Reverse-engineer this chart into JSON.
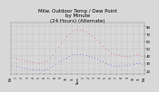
{
  "title": "Milw. Outdoor Temp / Dew Point\nby Minute\n(24 Hours) (Alternate)",
  "title_fontsize": 4.0,
  "background_color": "#d8d8d8",
  "plot_bg_color": "#d8d8d8",
  "grid_color": "#aaaaaa",
  "text_color": "#000000",
  "temp_color": "#ff0000",
  "dew_color": "#0000ff",
  "ylim": [
    15,
    85
  ],
  "xlim": [
    0,
    1440
  ],
  "ylabel_ticks": [
    20,
    30,
    40,
    50,
    60,
    70,
    80
  ],
  "xtick_labels": [
    "Mid",
    "1",
    "2",
    "3",
    "4",
    "5",
    "6",
    "7",
    "8",
    "9",
    "10",
    "11",
    "Noon",
    "1",
    "2",
    "3",
    "4",
    "5",
    "6",
    "7",
    "8",
    "9",
    "10",
    "11",
    "Mid"
  ],
  "temp_x": [
    0,
    30,
    60,
    90,
    120,
    150,
    180,
    210,
    240,
    270,
    300,
    330,
    360,
    390,
    420,
    450,
    480,
    510,
    540,
    570,
    600,
    630,
    660,
    690,
    720,
    750,
    780,
    810,
    840,
    870,
    900,
    930,
    960,
    990,
    1020,
    1050,
    1080,
    1110,
    1140,
    1170,
    1200,
    1230,
    1260,
    1290,
    1320,
    1350,
    1380,
    1410,
    1440
  ],
  "temp_y": [
    38,
    37,
    36,
    35,
    35,
    34,
    33,
    32,
    31,
    31,
    30,
    31,
    32,
    34,
    37,
    41,
    46,
    52,
    57,
    62,
    67,
    71,
    74,
    76,
    76,
    75,
    74,
    73,
    71,
    68,
    65,
    62,
    58,
    54,
    50,
    47,
    44,
    43,
    42,
    41,
    40,
    40,
    39,
    40,
    41,
    42,
    41,
    40,
    39
  ],
  "dew_x": [
    0,
    30,
    60,
    90,
    120,
    150,
    180,
    210,
    240,
    270,
    300,
    330,
    360,
    390,
    420,
    450,
    480,
    510,
    540,
    570,
    600,
    630,
    660,
    690,
    720,
    750,
    780,
    810,
    840,
    870,
    900,
    930,
    960,
    990,
    1020,
    1050,
    1080,
    1110,
    1140,
    1170,
    1200,
    1230,
    1260,
    1290,
    1320,
    1350,
    1380,
    1410,
    1440
  ],
  "dew_y": [
    28,
    27,
    26,
    25,
    24,
    24,
    23,
    22,
    22,
    21,
    21,
    21,
    22,
    23,
    25,
    27,
    29,
    32,
    34,
    36,
    38,
    40,
    42,
    43,
    43,
    43,
    42,
    41,
    40,
    39,
    37,
    36,
    34,
    32,
    30,
    29,
    28,
    27,
    27,
    27,
    27,
    28,
    28,
    28,
    29,
    30,
    30,
    29,
    28
  ]
}
